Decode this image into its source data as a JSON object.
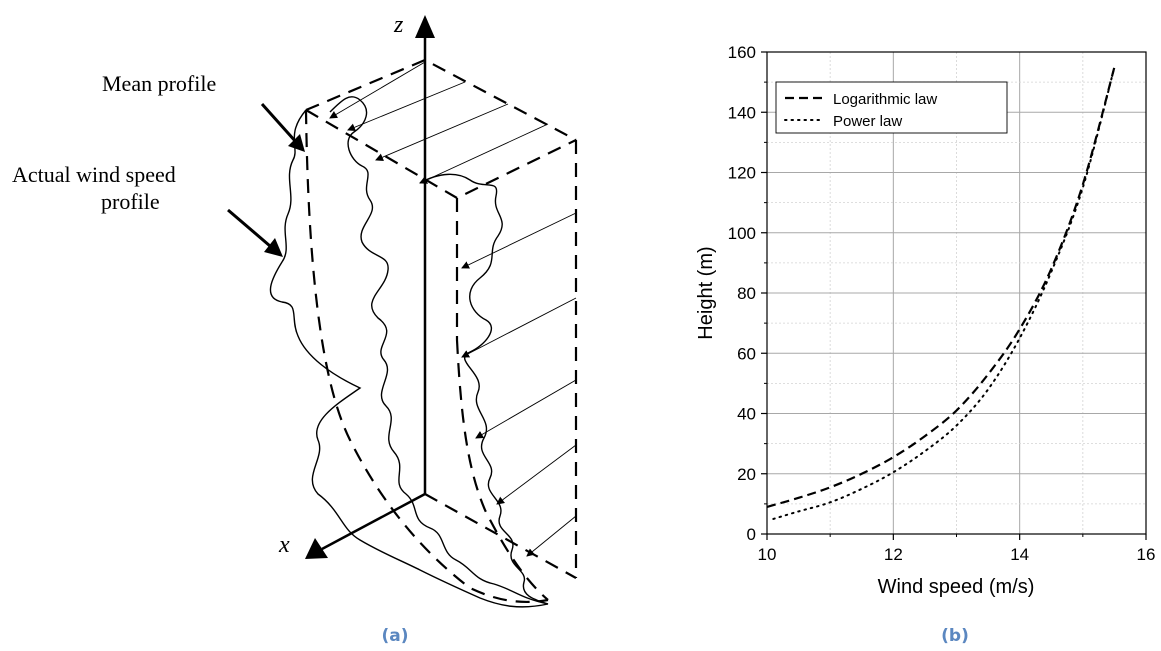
{
  "panel_a": {
    "panel_label": "(a)",
    "axis_z_label": "z",
    "axis_x_label": "x",
    "annotations": [
      "Mean profile",
      "Actual wind speed",
      "profile"
    ]
  },
  "panel_b": {
    "panel_label": "(b)"
  },
  "chart_data": {
    "type": "line",
    "title": "",
    "xlabel": "Wind speed (m/s)",
    "ylabel": "Height (m)",
    "xlim": [
      10,
      16
    ],
    "ylim": [
      0,
      160
    ],
    "xticks": [
      10,
      12,
      14,
      16
    ],
    "yticks": [
      0,
      20,
      40,
      60,
      80,
      100,
      120,
      140,
      160
    ],
    "grid": true,
    "legend": "top-left",
    "series": [
      {
        "name": "Logarithmic law",
        "style": "dashed",
        "x": [
          10.0,
          10.5,
          11.0,
          11.5,
          12.0,
          12.5,
          13.0,
          13.5,
          14.0,
          14.5,
          15.0,
          15.5
        ],
        "y": [
          9,
          12,
          15.5,
          20,
          25.5,
          32.5,
          41,
          53,
          68,
          88,
          116,
          155
        ]
      },
      {
        "name": "Power law",
        "style": "dotted",
        "x": [
          10.1,
          10.5,
          11.0,
          11.5,
          12.0,
          12.5,
          13.0,
          13.5,
          14.0,
          14.5,
          15.0,
          15.5
        ],
        "y": [
          5,
          7.5,
          10.5,
          15,
          20.5,
          27.5,
          36,
          48,
          65,
          87,
          115,
          155
        ]
      }
    ]
  }
}
